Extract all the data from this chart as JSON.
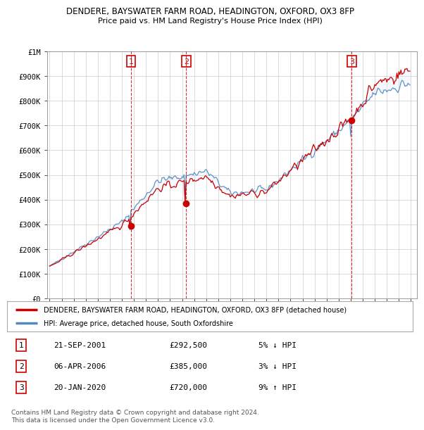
{
  "title": "DENDERE, BAYSWATER FARM ROAD, HEADINGTON, OXFORD, OX3 8FP",
  "subtitle": "Price paid vs. HM Land Registry's House Price Index (HPI)",
  "ylabel_ticks": [
    "£0",
    "£100K",
    "£200K",
    "£300K",
    "£400K",
    "£500K",
    "£600K",
    "£700K",
    "£800K",
    "£900K",
    "£1M"
  ],
  "ytick_values": [
    0,
    100000,
    200000,
    300000,
    400000,
    500000,
    600000,
    700000,
    800000,
    900000,
    1000000
  ],
  "ylim": [
    0,
    1000000
  ],
  "xmin": 1995.0,
  "xmax": 2025.5,
  "sale_dates": [
    "2001-09-21",
    "2006-04-06",
    "2020-01-20"
  ],
  "sale_prices": [
    292500,
    385000,
    720000
  ],
  "sale_labels": [
    "1",
    "2",
    "3"
  ],
  "legend_line_label": "DENDERE, BAYSWATER FARM ROAD, HEADINGTON, OXFORD, OX3 8FP (detached house)",
  "legend_hpi_label": "HPI: Average price, detached house, South Oxfordshire",
  "table_entries": [
    {
      "num": "1",
      "date": "21-SEP-2001",
      "price": "£292,500",
      "pct": "5%",
      "dir": "↓",
      "vs": "HPI"
    },
    {
      "num": "2",
      "date": "06-APR-2006",
      "price": "£385,000",
      "pct": "3%",
      "dir": "↓",
      "vs": "HPI"
    },
    {
      "num": "3",
      "date": "20-JAN-2020",
      "price": "£720,000",
      "pct": "9%",
      "dir": "↑",
      "vs": "HPI"
    }
  ],
  "footer": "Contains HM Land Registry data © Crown copyright and database right 2024.\nThis data is licensed under the Open Government Licence v3.0.",
  "line_color": "#cc0000",
  "hpi_color": "#5588bb",
  "hpi_fill_color": "#ddeeff",
  "marker_color": "#cc0000",
  "dashed_line_color": "#cc0000",
  "background_color": "#ffffff",
  "grid_color": "#cccccc"
}
